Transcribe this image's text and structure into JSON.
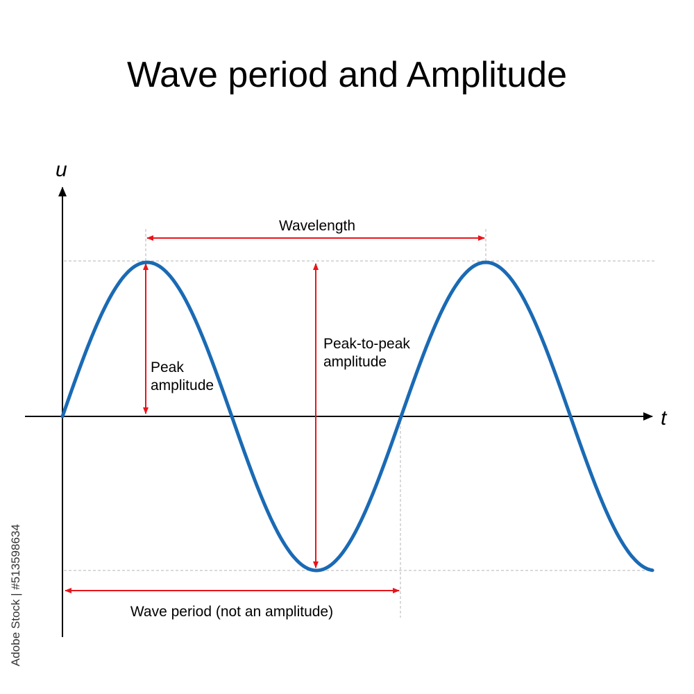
{
  "title": "Wave period and Amplitude",
  "axes": {
    "x_label": "t",
    "y_label": "u"
  },
  "labels": {
    "wavelength": "Wavelength",
    "peak_amplitude_line1": "Peak",
    "peak_amplitude_line2": "amplitude",
    "ptp_line1": "Peak-to-peak",
    "ptp_line2": "amplitude",
    "wave_period": "Wave period (not an amplitude)"
  },
  "watermark": "Adobe Stock | #513598634",
  "colors": {
    "wave": "#1a6ab4",
    "arrow": "#e8151b",
    "axis": "#000000",
    "guide": "#b3b3b3"
  }
}
